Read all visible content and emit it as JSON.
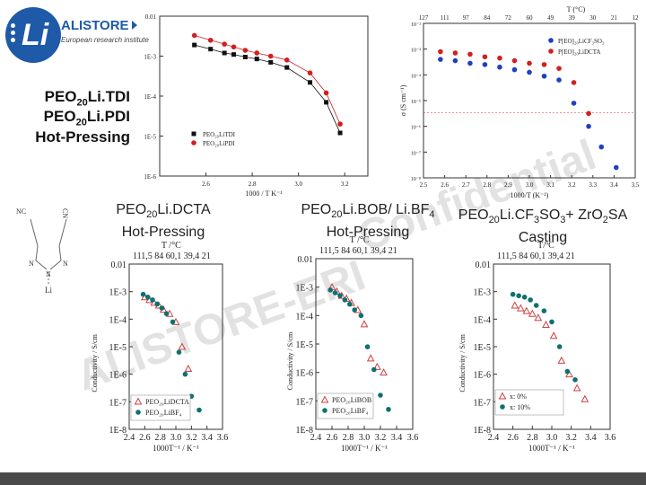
{
  "logo": {
    "mark": "Li",
    "name": "ALISTORE",
    "tagline": "European research institute"
  },
  "watermark": {
    "line1": "ALISTORE-ERI",
    "line2": "Confidential"
  },
  "captions": {
    "tdi": [
      "PEO",
      "20",
      "Li.TDI"
    ],
    "pdi": [
      "PEO",
      "20",
      "Li.PDI"
    ],
    "hot_pressing": "Hot-Pressing",
    "dcta": {
      "a": "PEO",
      "sub": "20",
      "b": "Li.DCTA",
      "method": "Hot-Pressing"
    },
    "bob": {
      "a": "PEO",
      "sub": "20",
      "b": "Li.BOB/ Li.BF",
      "sub2": "4",
      "method": "Hot-Pressing"
    },
    "cf3": {
      "a": "PEO",
      "sub": "20",
      "b": "Li.CF",
      "sub2": "3",
      "c": "SO",
      "sub3": "3",
      "d": "+ ZrO",
      "sub4": "2",
      "e": "SA",
      "method": "Casting"
    }
  },
  "molecule": {
    "atoms": [
      "NC",
      "CN",
      "N",
      "N",
      "N",
      "Li"
    ]
  },
  "chart_data": [
    {
      "type": "scatter",
      "id": "top-left",
      "xlabel": "1000 / T   K⁻¹",
      "ylabel": "",
      "xlim": [
        2.4,
        3.3
      ],
      "ylim_log10": [
        -6,
        -2
      ],
      "x_ticks": [
        "2.6",
        "2.8",
        "3.0",
        "3.2"
      ],
      "y_ticks": [
        "0.01",
        "1E-3",
        "1E-4",
        "1E-5",
        "1E-6"
      ],
      "series": [
        {
          "name": "PEO20LiTDI",
          "color": "#111111",
          "x": [
            2.55,
            2.62,
            2.68,
            2.72,
            2.77,
            2.82,
            2.88,
            2.95,
            3.05,
            3.12,
            3.18
          ],
          "y": [
            0.0019,
            0.0015,
            0.0012,
            0.0011,
            0.00095,
            0.00085,
            0.0007,
            0.00052,
            0.00022,
            7e-05,
            1.2e-05
          ]
        },
        {
          "name": "PEO20LiPDI",
          "color": "#d02020",
          "x": [
            2.55,
            2.62,
            2.68,
            2.72,
            2.77,
            2.82,
            2.88,
            2.95,
            3.05,
            3.12,
            3.18
          ],
          "y": [
            0.0033,
            0.0025,
            0.002,
            0.0017,
            0.0014,
            0.0012,
            0.001,
            0.0008,
            0.00038,
            0.00012,
            2e-05
          ]
        }
      ],
      "legend": [
        "PEO₂₀LiTDI",
        "PEO₂₀LiPDI"
      ]
    },
    {
      "type": "scatter",
      "id": "top-right",
      "top_axis_label": "T (°C)",
      "top_ticks": [
        "127",
        "111",
        "97",
        "84",
        "72",
        "60",
        "49",
        "39",
        "30",
        "21",
        "12"
      ],
      "xlabel": "1000/T (K⁻¹)",
      "ylabel": "σ (S cm⁻¹)",
      "xlim": [
        2.5,
        3.5
      ],
      "x_ticks": [
        "2.5",
        "2.6",
        "2.7",
        "2.8",
        "2.9",
        "3.0",
        "3.1",
        "3.2",
        "3.3",
        "3.4",
        "3.5"
      ],
      "y_ticks": [
        "10⁻²",
        "10⁻³",
        "10⁻⁴",
        "10⁻⁵",
        "10⁻⁶",
        "10⁻⁷",
        "10⁻⁸"
      ],
      "series": [
        {
          "name": "P(EO)20LiCF3SO3",
          "color": "#2040c0",
          "x": [
            2.58,
            2.65,
            2.72,
            2.79,
            2.86,
            2.93,
            3.0,
            3.07,
            3.14,
            3.21,
            3.28,
            3.34,
            3.41
          ],
          "y": [
            -3.4,
            -3.45,
            -3.55,
            -3.6,
            -3.7,
            -3.8,
            -3.9,
            -4.05,
            -4.2,
            -5.1,
            -6.0,
            -6.8,
            -7.6
          ]
        },
        {
          "name": "P(EO)20LiDCTA",
          "color": "#d02020",
          "x": [
            2.58,
            2.65,
            2.72,
            2.79,
            2.86,
            2.93,
            3.0,
            3.07,
            3.14,
            3.21,
            3.28
          ],
          "y": [
            -3.1,
            -3.15,
            -3.2,
            -3.3,
            -3.35,
            -3.45,
            -3.55,
            -3.6,
            -3.75,
            -4.3,
            -5.5
          ]
        }
      ],
      "legend": [
        "P[EO]₂₀LiCF₃SO₃",
        "P[EO]₂₀LiDCTA"
      ]
    },
    {
      "type": "scatter",
      "id": "bottom-left",
      "top_axis_label": "T /°C",
      "top_ticks": "111,5  84  60,1 39,4  21",
      "xlabel": "1000T⁻¹ / K⁻¹",
      "ylabel": "Conductivity / S/cm",
      "x_ticks": [
        "2.4",
        "2.6",
        "2.8",
        "3.0",
        "3.2",
        "3.4",
        "3.6"
      ],
      "y_ticks": [
        "0.01",
        "1E-3",
        "1E-4",
        "1E-5",
        "1E-6",
        "1E-7",
        "1E-8"
      ],
      "xlim": [
        2.4,
        3.6
      ],
      "series": [
        {
          "name": "PEO20LiDCTA",
          "color": "#d04040",
          "marker": "triangle",
          "x": [
            2.6,
            2.66,
            2.72,
            2.78,
            2.84,
            2.92,
            3.0,
            3.08,
            3.16
          ],
          "y": [
            -3.2,
            -3.3,
            -3.4,
            -3.5,
            -3.65,
            -3.8,
            -4.1,
            -5.0,
            -5.8
          ]
        },
        {
          "name": "PEO20LiBF4",
          "color": "#107070",
          "marker": "circle",
          "x": [
            2.58,
            2.64,
            2.7,
            2.76,
            2.82,
            2.88,
            2.96,
            3.04,
            3.12,
            3.2,
            3.3
          ],
          "y": [
            -3.1,
            -3.2,
            -3.3,
            -3.45,
            -3.6,
            -3.8,
            -4.1,
            -5.2,
            -6.0,
            -6.8,
            -7.3
          ]
        }
      ],
      "legend": [
        "PEO₂₀LiDCTA",
        "PEO₂₀LiBF₄"
      ]
    },
    {
      "type": "scatter",
      "id": "bottom-middle",
      "top_axis_label": "T /°C",
      "top_ticks": "111,5  84  60,1 39,4  21",
      "xlabel": "1000T⁻¹ / K⁻¹",
      "ylabel": "Conductivity / S/cm",
      "x_ticks": [
        "2.4",
        "2.6",
        "2.8",
        "3.0",
        "3.2",
        "3.4",
        "3.6"
      ],
      "y_ticks": [
        "0.01",
        "1E-3",
        "1E-4",
        "1E-5",
        "1E-6",
        "1E-7",
        "1E-8"
      ],
      "xlim": [
        2.4,
        3.6
      ],
      "series": [
        {
          "name": "PEO20LiBOB",
          "color": "#d04040",
          "marker": "triangle",
          "x": [
            2.6,
            2.66,
            2.72,
            2.78,
            2.84,
            2.92,
            3.0,
            3.08,
            3.16,
            3.24
          ],
          "y": [
            -3.0,
            -3.15,
            -3.3,
            -3.4,
            -3.55,
            -3.8,
            -4.3,
            -5.5,
            -5.8,
            -6.0
          ]
        },
        {
          "name": "PEO20LiBF4",
          "color": "#107070",
          "marker": "circle",
          "x": [
            2.58,
            2.64,
            2.7,
            2.76,
            2.82,
            2.88,
            2.96,
            3.04,
            3.12,
            3.2,
            3.3
          ],
          "y": [
            -3.1,
            -3.2,
            -3.3,
            -3.45,
            -3.6,
            -3.8,
            -4.0,
            -5.1,
            -5.9,
            -6.8,
            -7.3
          ]
        }
      ],
      "legend": [
        "PEO₂₀LiBOB",
        "PEO₂₀LiBF₄"
      ]
    },
    {
      "type": "scatter",
      "id": "bottom-right",
      "top_axis_label": "T/ºC",
      "top_ticks": "111,5  84  60,1 39,4  21",
      "xlabel": "1000T⁻¹ / K⁻¹",
      "ylabel": "Conductivity / S/cm",
      "x_ticks": [
        "2.4",
        "2.6",
        "2.8",
        "3.0",
        "3.2",
        "3.4",
        "3.6"
      ],
      "y_ticks": [
        "0.01",
        "1E-3",
        "1E-4",
        "1E-5",
        "1E-6",
        "1E-7",
        "1E-8"
      ],
      "xlim": [
        2.4,
        3.6
      ],
      "series": [
        {
          "name": "x: 0%",
          "color": "#d04040",
          "marker": "triangle",
          "x": [
            2.62,
            2.68,
            2.74,
            2.8,
            2.86,
            2.94,
            3.02,
            3.1,
            3.18,
            3.26,
            3.34
          ],
          "y": [
            -3.5,
            -3.6,
            -3.7,
            -3.8,
            -3.95,
            -4.2,
            -4.6,
            -5.5,
            -6.0,
            -6.5,
            -6.9
          ]
        },
        {
          "name": "x: 10%",
          "color": "#107070",
          "marker": "circle",
          "x": [
            2.6,
            2.66,
            2.72,
            2.78,
            2.84,
            2.92,
            3.0,
            3.08,
            3.16,
            3.24
          ],
          "y": [
            -3.1,
            -3.15,
            -3.2,
            -3.3,
            -3.5,
            -3.7,
            -4.1,
            -5.0,
            -5.9,
            -6.2
          ]
        }
      ],
      "legend": [
        "x: 0%",
        "x: 10%"
      ]
    }
  ]
}
